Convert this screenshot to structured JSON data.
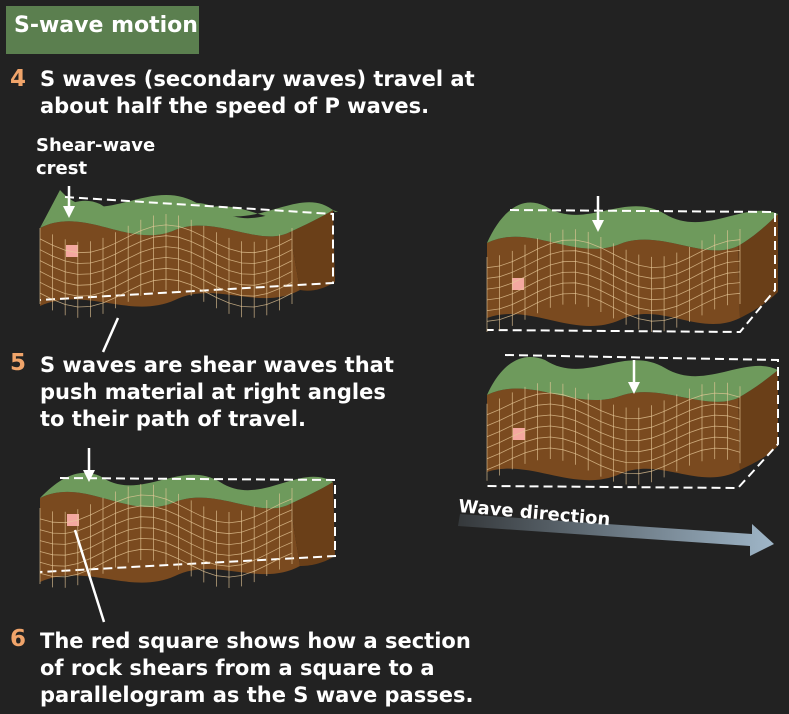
{
  "header": {
    "title": "S-wave motion"
  },
  "steps": [
    {
      "number": "4",
      "lines": [
        "S waves (secondary waves) travel at",
        "about half the speed of P waves."
      ]
    },
    {
      "number": "5",
      "lines": [
        "S waves are shear waves that",
        "push material at right angles",
        "to their path of travel."
      ]
    },
    {
      "number": "6",
      "lines": [
        "The red square shows how a section",
        "of rock shears from a square to a",
        "parallelogram as the S wave passes."
      ]
    }
  ],
  "labels": {
    "crest": [
      "Shear-wave",
      "crest"
    ],
    "wave_direction": "Wave direction"
  },
  "colors": {
    "background": "#222222",
    "title_box": "#5b7f4f",
    "number": "#f0a46a",
    "rock_top": "#6e9a5c",
    "rock_side": "#7a4a1f",
    "grid": "#e8c99a",
    "marker": "#f4a8a0",
    "arrow": "#9fb6c8"
  }
}
